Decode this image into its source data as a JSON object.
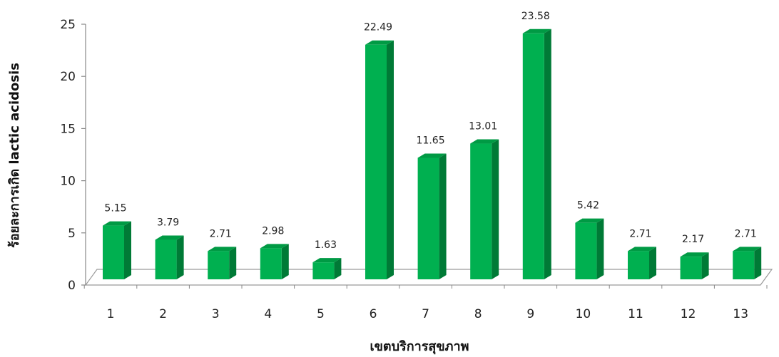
{
  "chart_data": {
    "type": "bar",
    "title": "",
    "xlabel": "เขตบริการสุขภาพ",
    "ylabel": "ร้อยละการเกิด lactic acidosis",
    "categories": [
      "1",
      "2",
      "3",
      "4",
      "5",
      "6",
      "7",
      "8",
      "9",
      "10",
      "11",
      "12",
      "13"
    ],
    "values": [
      5.15,
      3.79,
      2.71,
      2.98,
      1.63,
      22.49,
      11.65,
      13.01,
      23.58,
      5.42,
      2.71,
      2.17,
      2.71
    ],
    "data_labels": [
      "5.15",
      "3.79",
      "2.71",
      "2.98",
      "1.63",
      "22.49",
      "11.65",
      "13.01",
      "23.58",
      "5.42",
      "2.71",
      "2.17",
      "2.71"
    ],
    "ylim": [
      0,
      25
    ],
    "yticks": [
      "0",
      "5",
      "10",
      "15",
      "20",
      "25"
    ],
    "grid": false,
    "style": "3d-column",
    "colors": {
      "bar_front": "#00b050",
      "bar_side": "#007a36",
      "bar_top": "#009a44",
      "axis": "#888888"
    }
  }
}
